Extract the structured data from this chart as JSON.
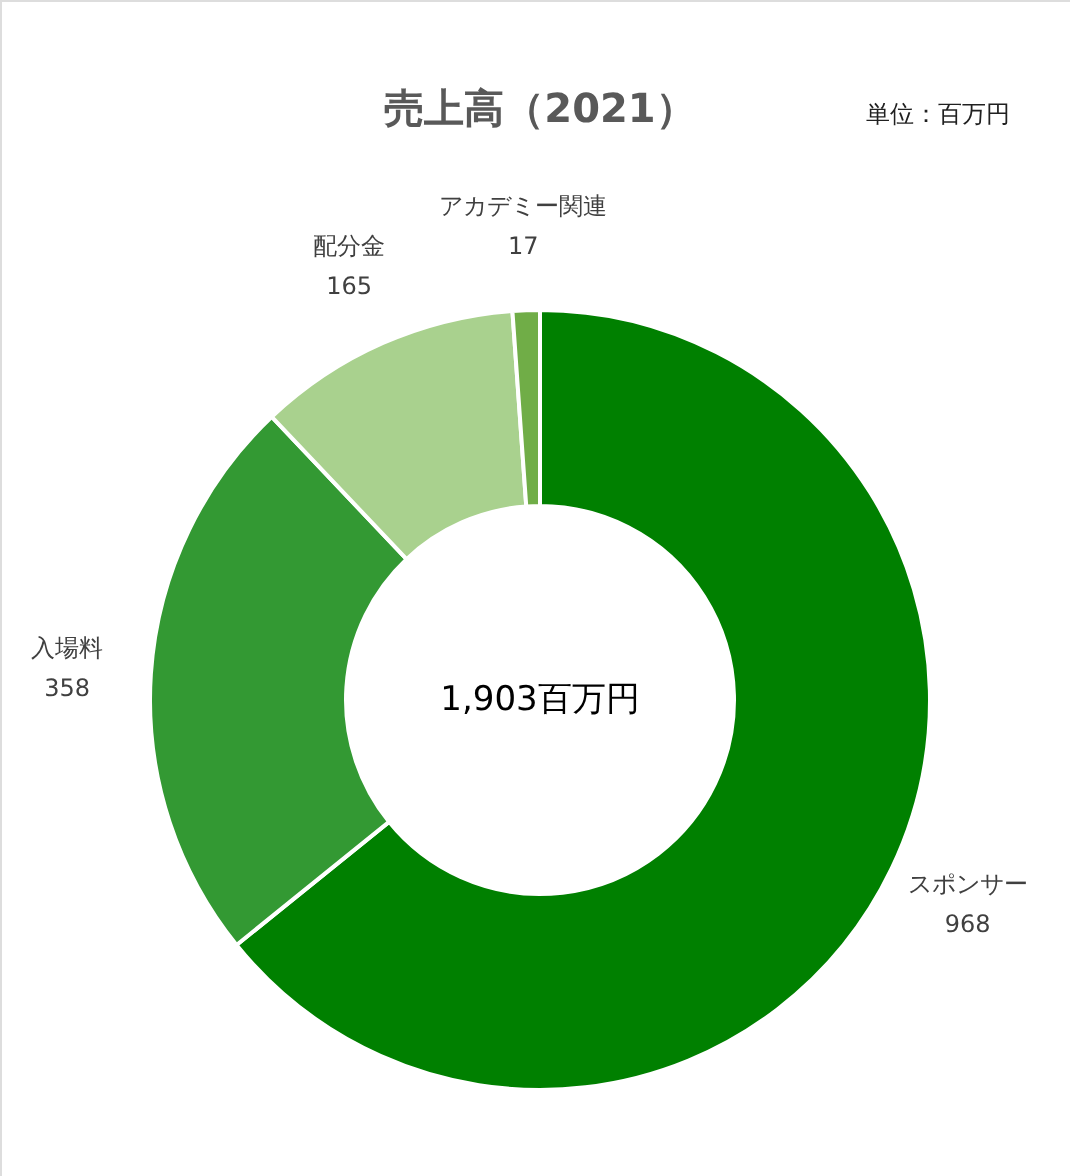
{
  "chart_data": {
    "type": "donut",
    "title": "売上高（2021）",
    "categories": [
      "スポンサー",
      "入場料",
      "配分金",
      "アカデミー関連"
    ],
    "values": [
      968,
      358,
      165,
      17
    ],
    "colors": [
      "#008000",
      "#339933",
      "#a9d18e",
      "#70ad47"
    ],
    "data_labels": true,
    "annotations": [
      "単位：百万円",
      "1,903百万円"
    ]
  }
}
